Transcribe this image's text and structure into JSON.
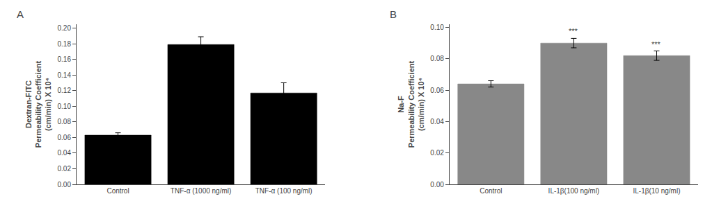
{
  "chart_data": [
    {
      "type": "bar",
      "title": "A",
      "categories": [
        "Control",
        "TNF-α (1000 ng/ml)",
        "TNF-α (100 ng/ml)"
      ],
      "values": [
        0.063,
        0.179,
        0.117
      ],
      "errors": [
        0.003,
        0.01,
        0.013
      ],
      "color": "#000000",
      "ylabel": "Dextran-FITC\nPermeability Coefficient\n(cm/min) X 10⁴",
      "ylim": [
        0,
        0.205
      ],
      "yticks": [
        {
          "value": 0,
          "label": "0.00"
        },
        0.02,
        0.04,
        0.06,
        0.08,
        {
          "value": 0.1,
          "label": "0.10"
        },
        0.12,
        0.14,
        0.16,
        0.18,
        {
          "value": 0.2,
          "label": "0.20"
        }
      ],
      "grid": false
    },
    {
      "type": "bar",
      "title": "B",
      "categories": [
        "Control",
        "IL-1β(100 ng/ml)",
        "IL-1β(10 ng/ml)"
      ],
      "values": [
        0.064,
        0.09,
        0.082
      ],
      "errors": [
        0.002,
        0.003,
        0.003
      ],
      "color": "#888888",
      "ylabel": "Na-F\nPermeability Coefficient\n(cm/min) X 10⁴",
      "ylim": [
        0,
        0.102
      ],
      "yticks": [
        {
          "value": 0,
          "label": "0.00"
        },
        0.02,
        0.04,
        0.06,
        0.08,
        {
          "value": 0.1,
          "label": "0.10"
        }
      ],
      "grid": false,
      "annotations": [
        {
          "x": "IL-1β(100 ng/ml)",
          "text": "***"
        },
        {
          "x": "IL-1β(10 ng/ml)",
          "text": "***"
        }
      ]
    }
  ]
}
